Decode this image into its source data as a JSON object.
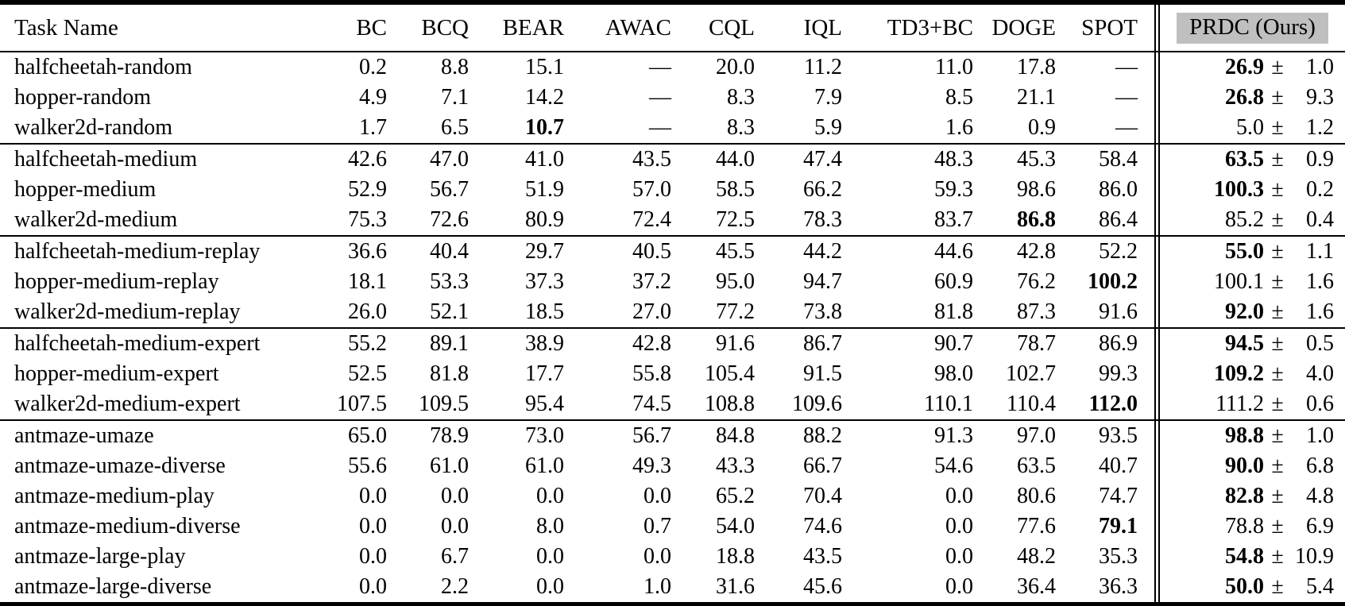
{
  "plus_minus": "±",
  "colors": {
    "header_highlight": "#bfbfbf",
    "rule": "#000000",
    "text": "#000000",
    "background": "#ffffff"
  },
  "header": {
    "columns": [
      {
        "label": "Task Name"
      },
      {
        "label": "BC"
      },
      {
        "label": "BCQ"
      },
      {
        "label": "BEAR"
      },
      {
        "label": "AWAC"
      },
      {
        "label": "CQL"
      },
      {
        "label": "IQL"
      },
      {
        "label": "TD3+BC"
      },
      {
        "label": "DOGE"
      },
      {
        "label": "SPOT"
      },
      {
        "label": "PRDC (Ours)",
        "highlighted": true
      }
    ]
  },
  "groups": [
    {
      "name": "random",
      "rows": [
        {
          "task": "halfcheetah-random",
          "values": [
            {
              "text": "0.2"
            },
            {
              "text": "8.8"
            },
            {
              "text": "15.1"
            },
            {
              "text": "—"
            },
            {
              "text": "20.0"
            },
            {
              "text": "11.2"
            },
            {
              "text": "11.0"
            },
            {
              "text": "17.8"
            },
            {
              "text": "—"
            }
          ],
          "prdc": {
            "mean": "26.9",
            "std": "1.0",
            "bold": true
          }
        },
        {
          "task": "hopper-random",
          "values": [
            {
              "text": "4.9"
            },
            {
              "text": "7.1"
            },
            {
              "text": "14.2"
            },
            {
              "text": "—"
            },
            {
              "text": "8.3"
            },
            {
              "text": "7.9"
            },
            {
              "text": "8.5"
            },
            {
              "text": "21.1"
            },
            {
              "text": "—"
            }
          ],
          "prdc": {
            "mean": "26.8",
            "std": "9.3",
            "bold": true
          }
        },
        {
          "task": "walker2d-random",
          "values": [
            {
              "text": "1.7"
            },
            {
              "text": "6.5"
            },
            {
              "text": "10.7",
              "bold": true
            },
            {
              "text": "—"
            },
            {
              "text": "8.3"
            },
            {
              "text": "5.9"
            },
            {
              "text": "1.6"
            },
            {
              "text": "0.9"
            },
            {
              "text": "—"
            }
          ],
          "prdc": {
            "mean": "5.0",
            "std": "1.2",
            "bold": false
          }
        }
      ]
    },
    {
      "name": "medium",
      "rows": [
        {
          "task": "halfcheetah-medium",
          "values": [
            {
              "text": "42.6"
            },
            {
              "text": "47.0"
            },
            {
              "text": "41.0"
            },
            {
              "text": "43.5"
            },
            {
              "text": "44.0"
            },
            {
              "text": "47.4"
            },
            {
              "text": "48.3"
            },
            {
              "text": "45.3"
            },
            {
              "text": "58.4"
            }
          ],
          "prdc": {
            "mean": "63.5",
            "std": "0.9",
            "bold": true
          }
        },
        {
          "task": "hopper-medium",
          "values": [
            {
              "text": "52.9"
            },
            {
              "text": "56.7"
            },
            {
              "text": "51.9"
            },
            {
              "text": "57.0"
            },
            {
              "text": "58.5"
            },
            {
              "text": "66.2"
            },
            {
              "text": "59.3"
            },
            {
              "text": "98.6"
            },
            {
              "text": "86.0"
            }
          ],
          "prdc": {
            "mean": "100.3",
            "std": "0.2",
            "bold": true
          }
        },
        {
          "task": "walker2d-medium",
          "values": [
            {
              "text": "75.3"
            },
            {
              "text": "72.6"
            },
            {
              "text": "80.9"
            },
            {
              "text": "72.4"
            },
            {
              "text": "72.5"
            },
            {
              "text": "78.3"
            },
            {
              "text": "83.7"
            },
            {
              "text": "86.8",
              "bold": true
            },
            {
              "text": "86.4"
            }
          ],
          "prdc": {
            "mean": "85.2",
            "std": "0.4",
            "bold": false
          }
        }
      ]
    },
    {
      "name": "medium-replay",
      "rows": [
        {
          "task": "halfcheetah-medium-replay",
          "values": [
            {
              "text": "36.6"
            },
            {
              "text": "40.4"
            },
            {
              "text": "29.7"
            },
            {
              "text": "40.5"
            },
            {
              "text": "45.5"
            },
            {
              "text": "44.2"
            },
            {
              "text": "44.6"
            },
            {
              "text": "42.8"
            },
            {
              "text": "52.2"
            }
          ],
          "prdc": {
            "mean": "55.0",
            "std": "1.1",
            "bold": true
          }
        },
        {
          "task": "hopper-medium-replay",
          "values": [
            {
              "text": "18.1"
            },
            {
              "text": "53.3"
            },
            {
              "text": "37.3"
            },
            {
              "text": "37.2"
            },
            {
              "text": "95.0"
            },
            {
              "text": "94.7"
            },
            {
              "text": "60.9"
            },
            {
              "text": "76.2"
            },
            {
              "text": "100.2",
              "bold": true
            }
          ],
          "prdc": {
            "mean": "100.1",
            "std": "1.6",
            "bold": false
          }
        },
        {
          "task": "walker2d-medium-replay",
          "values": [
            {
              "text": "26.0"
            },
            {
              "text": "52.1"
            },
            {
              "text": "18.5"
            },
            {
              "text": "27.0"
            },
            {
              "text": "77.2"
            },
            {
              "text": "73.8"
            },
            {
              "text": "81.8"
            },
            {
              "text": "87.3"
            },
            {
              "text": "91.6"
            }
          ],
          "prdc": {
            "mean": "92.0",
            "std": "1.6",
            "bold": true
          }
        }
      ]
    },
    {
      "name": "medium-expert",
      "rows": [
        {
          "task": "halfcheetah-medium-expert",
          "values": [
            {
              "text": "55.2"
            },
            {
              "text": "89.1"
            },
            {
              "text": "38.9"
            },
            {
              "text": "42.8"
            },
            {
              "text": "91.6"
            },
            {
              "text": "86.7"
            },
            {
              "text": "90.7"
            },
            {
              "text": "78.7"
            },
            {
              "text": "86.9"
            }
          ],
          "prdc": {
            "mean": "94.5",
            "std": "0.5",
            "bold": true
          }
        },
        {
          "task": "hopper-medium-expert",
          "values": [
            {
              "text": "52.5"
            },
            {
              "text": "81.8"
            },
            {
              "text": "17.7"
            },
            {
              "text": "55.8"
            },
            {
              "text": "105.4"
            },
            {
              "text": "91.5"
            },
            {
              "text": "98.0"
            },
            {
              "text": "102.7"
            },
            {
              "text": "99.3"
            }
          ],
          "prdc": {
            "mean": "109.2",
            "std": "4.0",
            "bold": true
          }
        },
        {
          "task": "walker2d-medium-expert",
          "values": [
            {
              "text": "107.5"
            },
            {
              "text": "109.5"
            },
            {
              "text": "95.4"
            },
            {
              "text": "74.5"
            },
            {
              "text": "108.8"
            },
            {
              "text": "109.6"
            },
            {
              "text": "110.1"
            },
            {
              "text": "110.4"
            },
            {
              "text": "112.0",
              "bold": true
            }
          ],
          "prdc": {
            "mean": "111.2",
            "std": "0.6",
            "bold": false
          }
        }
      ]
    },
    {
      "name": "antmaze",
      "rows": [
        {
          "task": "antmaze-umaze",
          "values": [
            {
              "text": "65.0"
            },
            {
              "text": "78.9"
            },
            {
              "text": "73.0"
            },
            {
              "text": "56.7"
            },
            {
              "text": "84.8"
            },
            {
              "text": "88.2"
            },
            {
              "text": "91.3"
            },
            {
              "text": "97.0"
            },
            {
              "text": "93.5"
            }
          ],
          "prdc": {
            "mean": "98.8",
            "std": "1.0",
            "bold": true
          }
        },
        {
          "task": "antmaze-umaze-diverse",
          "values": [
            {
              "text": "55.6"
            },
            {
              "text": "61.0"
            },
            {
              "text": "61.0"
            },
            {
              "text": "49.3"
            },
            {
              "text": "43.3"
            },
            {
              "text": "66.7"
            },
            {
              "text": "54.6"
            },
            {
              "text": "63.5"
            },
            {
              "text": "40.7"
            }
          ],
          "prdc": {
            "mean": "90.0",
            "std": "6.8",
            "bold": true
          }
        },
        {
          "task": "antmaze-medium-play",
          "values": [
            {
              "text": "0.0"
            },
            {
              "text": "0.0"
            },
            {
              "text": "0.0"
            },
            {
              "text": "0.0"
            },
            {
              "text": "65.2"
            },
            {
              "text": "70.4"
            },
            {
              "text": "0.0"
            },
            {
              "text": "80.6"
            },
            {
              "text": "74.7"
            }
          ],
          "prdc": {
            "mean": "82.8",
            "std": "4.8",
            "bold": true
          }
        },
        {
          "task": "antmaze-medium-diverse",
          "values": [
            {
              "text": "0.0"
            },
            {
              "text": "0.0"
            },
            {
              "text": "8.0"
            },
            {
              "text": "0.7"
            },
            {
              "text": "54.0"
            },
            {
              "text": "74.6"
            },
            {
              "text": "0.0"
            },
            {
              "text": "77.6"
            },
            {
              "text": "79.1",
              "bold": true
            }
          ],
          "prdc": {
            "mean": "78.8",
            "std": "6.9",
            "bold": false
          }
        },
        {
          "task": "antmaze-large-play",
          "values": [
            {
              "text": "0.0"
            },
            {
              "text": "6.7"
            },
            {
              "text": "0.0"
            },
            {
              "text": "0.0"
            },
            {
              "text": "18.8"
            },
            {
              "text": "43.5"
            },
            {
              "text": "0.0"
            },
            {
              "text": "48.2"
            },
            {
              "text": "35.3"
            }
          ],
          "prdc": {
            "mean": "54.8",
            "std": "10.9",
            "bold": true
          }
        },
        {
          "task": "antmaze-large-diverse",
          "values": [
            {
              "text": "0.0"
            },
            {
              "text": "2.2"
            },
            {
              "text": "0.0"
            },
            {
              "text": "1.0"
            },
            {
              "text": "31.6"
            },
            {
              "text": "45.6"
            },
            {
              "text": "0.0"
            },
            {
              "text": "36.4"
            },
            {
              "text": "36.3"
            }
          ],
          "prdc": {
            "mean": "50.0",
            "std": "5.4",
            "bold": true
          }
        }
      ]
    }
  ]
}
